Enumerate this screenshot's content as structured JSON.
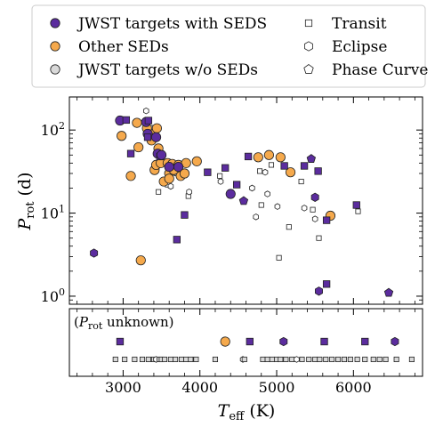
{
  "legend": {
    "items": [
      {
        "label": "JWST targets with SEDS",
        "marker": "circle",
        "fill": "#5b2c9e"
      },
      {
        "label": "Other SEDs",
        "marker": "circle",
        "fill": "#f5a94c"
      },
      {
        "label": "JWST targets w/o SEDs",
        "marker": "circle",
        "fill": "#d9d9d9"
      },
      {
        "label": "Transit",
        "marker": "square",
        "fill": "#ffffff"
      },
      {
        "label": "Eclipse",
        "marker": "hexagon",
        "fill": "#ffffff"
      },
      {
        "label": "Phase Curve",
        "marker": "pentagon",
        "fill": "#ffffff"
      }
    ]
  },
  "colors": {
    "jwst_seds": "#5b2c9e",
    "other_seds": "#f5a94c",
    "jwst_no_seds": "#d9d9d9",
    "edge": "#222222"
  },
  "chart_data": [
    {
      "type": "scatter",
      "panel": "top",
      "ylabel_main": "P",
      "ylabel_sub": "rot",
      "ylabel_unit": "(d)",
      "yscale": "log",
      "ylim": [
        0.8,
        250
      ],
      "xlim": [
        2300,
        6900
      ],
      "yticks": [
        {
          "value": 1,
          "base": "10",
          "exp": "0"
        },
        {
          "value": 10,
          "base": "10",
          "exp": "1"
        },
        {
          "value": 100,
          "base": "10",
          "exp": "2"
        }
      ],
      "series": [
        {
          "name": "JWST targets with SEDS",
          "points": [
            {
              "x": 2960,
              "y": 130,
              "m": "circle"
            },
            {
              "x": 3040,
              "y": 132,
              "m": "square"
            },
            {
              "x": 3300,
              "y": 125,
              "m": "circle"
            },
            {
              "x": 3320,
              "y": 90,
              "m": "circle"
            },
            {
              "x": 3330,
              "y": 130,
              "m": "square"
            },
            {
              "x": 3100,
              "y": 52,
              "m": "square"
            },
            {
              "x": 3320,
              "y": 82,
              "m": "square"
            },
            {
              "x": 3430,
              "y": 82,
              "m": "circle"
            },
            {
              "x": 3450,
              "y": 52,
              "m": "circle"
            },
            {
              "x": 3480,
              "y": 48,
              "m": "square"
            },
            {
              "x": 3500,
              "y": 50,
              "m": "circle"
            },
            {
              "x": 3600,
              "y": 36,
              "m": "circle"
            },
            {
              "x": 3720,
              "y": 36,
              "m": "circle"
            },
            {
              "x": 3800,
              "y": 9.5,
              "m": "square"
            },
            {
              "x": 3700,
              "y": 4.8,
              "m": "square"
            },
            {
              "x": 4100,
              "y": 31,
              "m": "square"
            },
            {
              "x": 4330,
              "y": 35,
              "m": "square"
            },
            {
              "x": 4400,
              "y": 17,
              "m": "circle"
            },
            {
              "x": 4480,
              "y": 22,
              "m": "square"
            },
            {
              "x": 4570,
              "y": 14,
              "m": "pentagon"
            },
            {
              "x": 4630,
              "y": 48,
              "m": "square"
            },
            {
              "x": 5100,
              "y": 37,
              "m": "square"
            },
            {
              "x": 5360,
              "y": 37,
              "m": "square"
            },
            {
              "x": 5450,
              "y": 45,
              "m": "pentagon"
            },
            {
              "x": 5540,
              "y": 32,
              "m": "square"
            },
            {
              "x": 5500,
              "y": 15.5,
              "m": "hexagon"
            },
            {
              "x": 5650,
              "y": 8.2,
              "m": "square"
            },
            {
              "x": 6040,
              "y": 12.5,
              "m": "square"
            },
            {
              "x": 2620,
              "y": 3.3,
              "m": "hexagon"
            },
            {
              "x": 5550,
              "y": 1.15,
              "m": "hexagon"
            },
            {
              "x": 5650,
              "y": 1.4,
              "m": "square"
            },
            {
              "x": 6460,
              "y": 1.1,
              "m": "pentagon"
            }
          ]
        },
        {
          "name": "Other SEDs",
          "points": [
            {
              "x": 2980,
              "y": 85
            },
            {
              "x": 3100,
              "y": 28
            },
            {
              "x": 3180,
              "y": 122
            },
            {
              "x": 3200,
              "y": 62
            },
            {
              "x": 3230,
              "y": 2.7
            },
            {
              "x": 3310,
              "y": 105
            },
            {
              "x": 3370,
              "y": 75
            },
            {
              "x": 3400,
              "y": 90
            },
            {
              "x": 3410,
              "y": 33
            },
            {
              "x": 3430,
              "y": 38
            },
            {
              "x": 3440,
              "y": 105
            },
            {
              "x": 3460,
              "y": 60
            },
            {
              "x": 3490,
              "y": 40
            },
            {
              "x": 3530,
              "y": 24
            },
            {
              "x": 3580,
              "y": 40
            },
            {
              "x": 3600,
              "y": 30
            },
            {
              "x": 3600,
              "y": 26
            },
            {
              "x": 3640,
              "y": 39
            },
            {
              "x": 3660,
              "y": 33
            },
            {
              "x": 3720,
              "y": 38
            },
            {
              "x": 3750,
              "y": 28
            },
            {
              "x": 3800,
              "y": 30
            },
            {
              "x": 3820,
              "y": 40
            },
            {
              "x": 3960,
              "y": 42
            },
            {
              "x": 4760,
              "y": 47
            },
            {
              "x": 4900,
              "y": 50
            },
            {
              "x": 5050,
              "y": 47
            },
            {
              "x": 5180,
              "y": 31
            },
            {
              "x": 5700,
              "y": 9.3
            }
          ]
        },
        {
          "name": "JWST targets w/o SEDs",
          "points": [
            {
              "x": 3300,
              "y": 170,
              "m": "hexagon"
            },
            {
              "x": 3380,
              "y": 105,
              "m": "hexagon"
            },
            {
              "x": 3460,
              "y": 18,
              "m": "square"
            },
            {
              "x": 3580,
              "y": 22,
              "m": "square"
            },
            {
              "x": 3620,
              "y": 21,
              "m": "hexagon"
            },
            {
              "x": 3700,
              "y": 30,
              "m": "square"
            },
            {
              "x": 3850,
              "y": 16,
              "m": "square"
            },
            {
              "x": 3860,
              "y": 18,
              "m": "hexagon"
            },
            {
              "x": 4260,
              "y": 28,
              "m": "square"
            },
            {
              "x": 4270,
              "y": 24,
              "m": "hexagon"
            },
            {
              "x": 4680,
              "y": 20,
              "m": "hexagon"
            },
            {
              "x": 4730,
              "y": 9,
              "m": "hexagon"
            },
            {
              "x": 4780,
              "y": 32,
              "m": "square"
            },
            {
              "x": 4800,
              "y": 12.5,
              "m": "square"
            },
            {
              "x": 4850,
              "y": 31,
              "m": "hexagon"
            },
            {
              "x": 4880,
              "y": 17,
              "m": "hexagon"
            },
            {
              "x": 4930,
              "y": 38,
              "m": "square"
            },
            {
              "x": 5010,
              "y": 12,
              "m": "hexagon"
            },
            {
              "x": 5030,
              "y": 2.9,
              "m": "square"
            },
            {
              "x": 5160,
              "y": 6.8,
              "m": "square"
            },
            {
              "x": 5320,
              "y": 24,
              "m": "square"
            },
            {
              "x": 5360,
              "y": 11.5,
              "m": "hexagon"
            },
            {
              "x": 5470,
              "y": 11,
              "m": "square"
            },
            {
              "x": 5500,
              "y": 8.5,
              "m": "hexagon"
            },
            {
              "x": 5550,
              "y": 5,
              "m": "square"
            },
            {
              "x": 6060,
              "y": 10.5,
              "m": "square"
            }
          ]
        }
      ],
      "xlabel": ""
    },
    {
      "type": "scatter",
      "panel": "bottom",
      "annotation": "(Prot unknown)",
      "annotation_parts": {
        "open": "(",
        "main": "P",
        "sub": "rot",
        "rest": " unknown)"
      },
      "xlim": [
        2300,
        6900
      ],
      "xticks": [
        3000,
        4000,
        5000,
        6000
      ],
      "xlabel_main": "T",
      "xlabel_sub": "eff",
      "xlabel_unit": "(K)",
      "rows": [
        {
          "name": "JWST targets with SEDS",
          "points": [
            {
              "x": 2960,
              "m": "square"
            },
            {
              "x": 4650,
              "m": "square"
            },
            {
              "x": 5090,
              "m": "hexagon"
            },
            {
              "x": 5620,
              "m": "square"
            },
            {
              "x": 6150,
              "m": "square"
            },
            {
              "x": 6540,
              "m": "hexagon"
            }
          ]
        },
        {
          "name": "Other SEDs",
          "points": [
            {
              "x": 4330,
              "m": "circle"
            }
          ]
        },
        {
          "name": "JWST targets w/o SEDs",
          "points": [
            {
              "x": 2900,
              "m": "square"
            },
            {
              "x": 3020,
              "m": "square"
            },
            {
              "x": 3150,
              "m": "square"
            },
            {
              "x": 3250,
              "m": "square"
            },
            {
              "x": 3330,
              "m": "square"
            },
            {
              "x": 3400,
              "m": "square"
            },
            {
              "x": 3430,
              "m": "hexagon"
            },
            {
              "x": 3470,
              "m": "square"
            },
            {
              "x": 3500,
              "m": "square"
            },
            {
              "x": 3540,
              "m": "square"
            },
            {
              "x": 3620,
              "m": "square"
            },
            {
              "x": 3680,
              "m": "square"
            },
            {
              "x": 3760,
              "m": "square"
            },
            {
              "x": 3820,
              "m": "square"
            },
            {
              "x": 3880,
              "m": "square"
            },
            {
              "x": 3950,
              "m": "square"
            },
            {
              "x": 4200,
              "m": "square"
            },
            {
              "x": 4560,
              "m": "hexagon"
            },
            {
              "x": 4580,
              "m": "square"
            },
            {
              "x": 4820,
              "m": "square"
            },
            {
              "x": 4880,
              "m": "square"
            },
            {
              "x": 4940,
              "m": "square"
            },
            {
              "x": 5000,
              "m": "square"
            },
            {
              "x": 5050,
              "m": "square"
            },
            {
              "x": 5120,
              "m": "square"
            },
            {
              "x": 5200,
              "m": "square"
            },
            {
              "x": 5260,
              "m": "hexagon"
            },
            {
              "x": 5330,
              "m": "square"
            },
            {
              "x": 5420,
              "m": "square"
            },
            {
              "x": 5500,
              "m": "square"
            },
            {
              "x": 5560,
              "m": "square"
            },
            {
              "x": 5640,
              "m": "square"
            },
            {
              "x": 5720,
              "m": "square"
            },
            {
              "x": 5800,
              "m": "square"
            },
            {
              "x": 5880,
              "m": "square"
            },
            {
              "x": 5960,
              "m": "square"
            },
            {
              "x": 6050,
              "m": "square"
            },
            {
              "x": 6150,
              "m": "square"
            },
            {
              "x": 6260,
              "m": "square"
            },
            {
              "x": 6340,
              "m": "square"
            },
            {
              "x": 6420,
              "m": "square"
            },
            {
              "x": 6560,
              "m": "square"
            },
            {
              "x": 6760,
              "m": "square"
            }
          ]
        }
      ]
    }
  ]
}
